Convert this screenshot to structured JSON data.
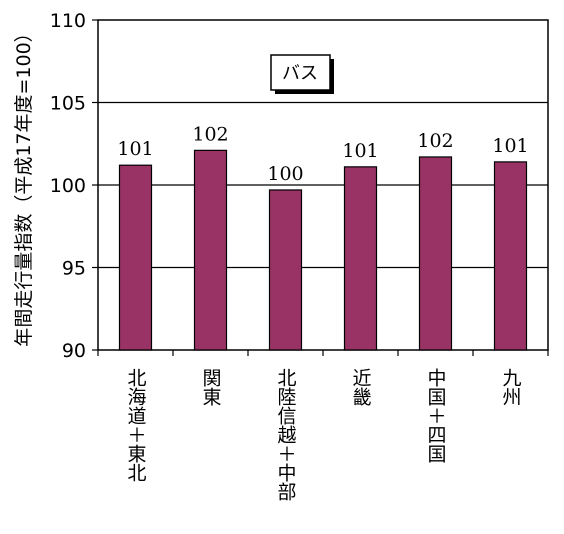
{
  "chart_data": {
    "type": "bar",
    "title": "",
    "annotation": "バス",
    "xlabel": "",
    "ylabel": "年間走行量指数（平成17年度=100）",
    "ylim": [
      90,
      110
    ],
    "yticks": [
      "90",
      "95",
      "100",
      "105",
      "110"
    ],
    "grid": true,
    "categories": [
      "北海道＋東北",
      "関東",
      "北陸信越＋中部",
      "近畿",
      "中国＋四国",
      "九州"
    ],
    "values": [
      101.2,
      102.1,
      99.7,
      101.1,
      101.7,
      101.4
    ],
    "data_labels": [
      "101",
      "102",
      "100",
      "101",
      "102",
      "101"
    ],
    "colors": {
      "bar": "#993366",
      "bar_outline": "#000000",
      "grid": "#000000",
      "axis": "#000000"
    }
  }
}
